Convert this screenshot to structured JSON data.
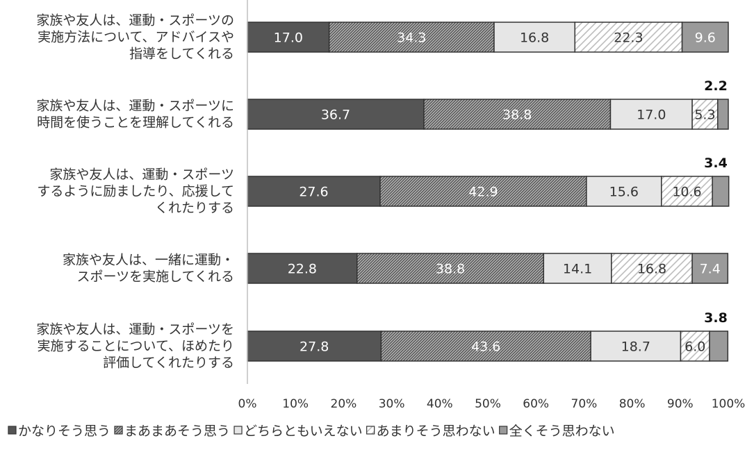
{
  "colors": {
    "s1": "#555555",
    "s2": "#9a9a9a",
    "s3": "#e6e6e6",
    "s4": "#ffffff",
    "s5": "#9a9a9a",
    "border": "#333333",
    "axis": "#bfbfbf"
  },
  "chart_data": {
    "type": "bar",
    "orientation": "horizontal",
    "stacked": true,
    "percent": true,
    "categories": [
      [
        "家族や友人は、運動・スポーツの",
        "実施方法について、アドバイスや",
        "指導をしてくれる"
      ],
      [
        "家族や友人は、運動・スポーツに",
        "時間を使うことを理解してくれる"
      ],
      [
        "家族や友人は、運動・スポーツ",
        "するように励ましたり、応援して",
        "くれたりする"
      ],
      [
        "家族や友人は、一緒に運動・",
        "スポーツを実施してくれる"
      ],
      [
        "家族や友人は、運動・スポーツを",
        "実施することについて、ほめたり",
        "評価してくれたりする"
      ]
    ],
    "series": [
      {
        "name": "かなりそう思う",
        "values": [
          17.0,
          36.7,
          27.6,
          22.8,
          27.8
        ],
        "labels": [
          "17.0",
          "36.7",
          "27.6",
          "22.8",
          "27.8"
        ]
      },
      {
        "name": "まあまあそう思う",
        "values": [
          34.3,
          38.8,
          42.9,
          38.8,
          43.6
        ],
        "labels": [
          "34.3",
          "38.8",
          "42.9",
          "38.8",
          "43.6"
        ]
      },
      {
        "name": "どちらともいえない",
        "values": [
          16.8,
          17.0,
          15.6,
          14.1,
          18.7
        ],
        "labels": [
          "16.8",
          "17.0",
          "15.6",
          "14.1",
          "18.7"
        ]
      },
      {
        "name": "あまりそう思わない",
        "values": [
          22.3,
          5.3,
          10.6,
          16.8,
          6.0
        ],
        "labels": [
          "22.3",
          "5.3",
          "10.6",
          "16.8",
          "6.0"
        ]
      },
      {
        "name": "全くそう思わない",
        "values": [
          9.6,
          2.2,
          3.4,
          7.4,
          3.8
        ],
        "labels": [
          "9.6",
          "2.2",
          "3.4",
          "7.4",
          "3.8"
        ]
      }
    ],
    "xlim": [
      0,
      100
    ],
    "xticks": [
      "0%",
      "10%",
      "20%",
      "30%",
      "40%",
      "50%",
      "60%",
      "70%",
      "80%",
      "90%",
      "100%"
    ],
    "legend_position": "bottom",
    "grid": false
  }
}
